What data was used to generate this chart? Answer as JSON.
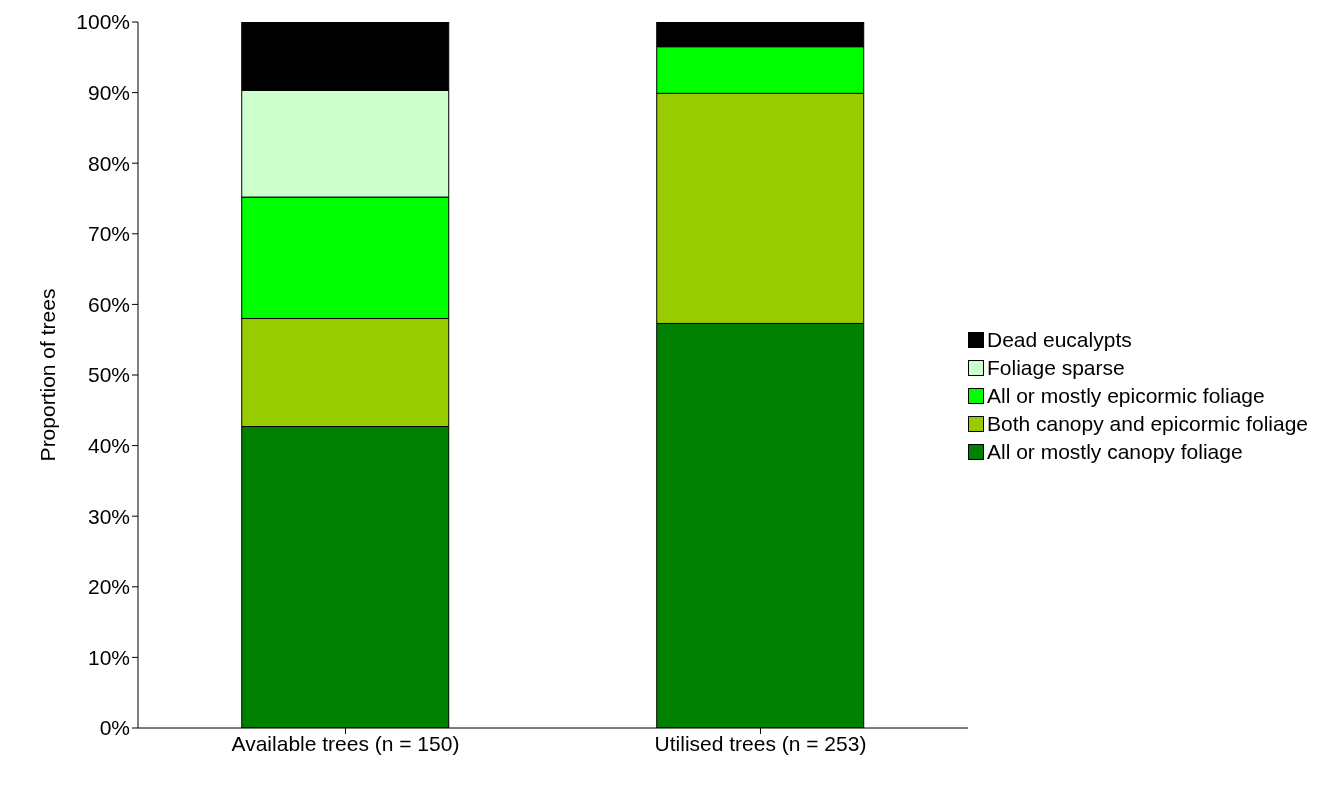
{
  "chart_data": {
    "type": "bar",
    "stacked": true,
    "categories": [
      "Available trees (n = 150)",
      "Utilised trees (n = 253)"
    ],
    "ylabel": "Proportion of trees",
    "ylim": [
      0,
      100
    ],
    "yticks": [
      {
        "value": 0,
        "label": "0%"
      },
      {
        "value": 10,
        "label": "10%"
      },
      {
        "value": 20,
        "label": "20%"
      },
      {
        "value": 30,
        "label": "30%"
      },
      {
        "value": 40,
        "label": "40%"
      },
      {
        "value": 50,
        "label": "50%"
      },
      {
        "value": 60,
        "label": "60%"
      },
      {
        "value": 70,
        "label": "70%"
      },
      {
        "value": 80,
        "label": "80%"
      },
      {
        "value": 90,
        "label": "90%"
      },
      {
        "value": 100,
        "label": "100%"
      }
    ],
    "series": [
      {
        "name": "All or mostly canopy foliage",
        "color": "#008000",
        "values": [
          42.7,
          57.3
        ]
      },
      {
        "name": "Both canopy and epicormic foliage",
        "color": "#99cc00",
        "values": [
          15.3,
          32.6
        ]
      },
      {
        "name": "All or mostly epicormic foliage",
        "color": "#00ff00",
        "values": [
          17.2,
          6.6
        ]
      },
      {
        "name": "Foliage sparse",
        "color": "#ccffcc",
        "values": [
          15.1,
          0
        ]
      },
      {
        "name": "Dead eucalypts",
        "color": "#000000",
        "values": [
          9.7,
          3.5
        ]
      }
    ],
    "grid": false,
    "legend": "right"
  }
}
